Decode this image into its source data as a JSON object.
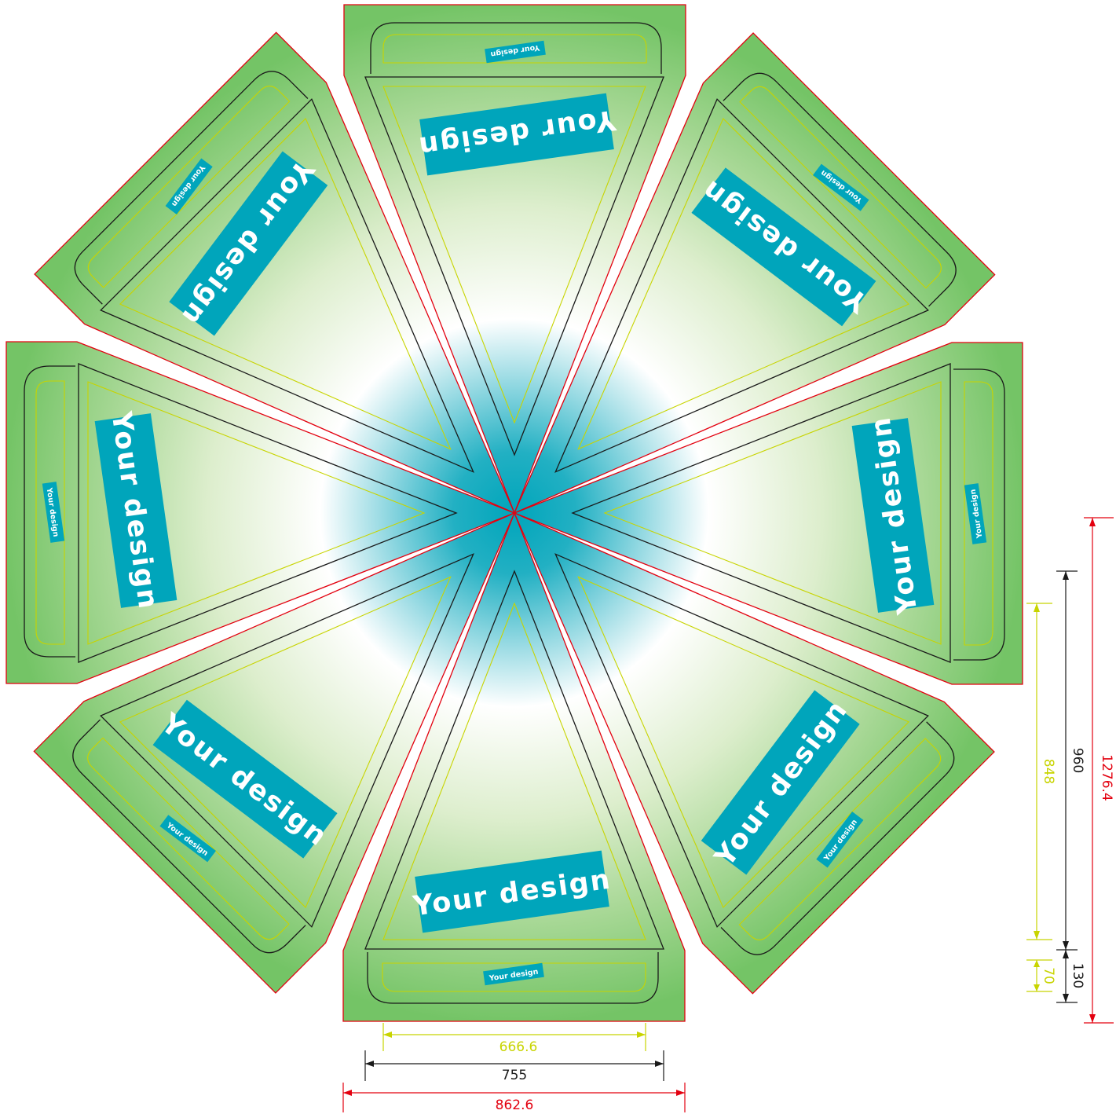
{
  "design_label": "Your design",
  "panel_count": 8,
  "colors": {
    "center": "#00a5bb",
    "mid": "#ffffff",
    "edge": "#78c46b",
    "label_bg": "#00a5bb",
    "label_text": "#ffffff",
    "cut_line": "#e3000f",
    "fold_line": "#1a1a1a",
    "safe_line": "#c8d400"
  },
  "dimensions": {
    "horizontal": [
      {
        "name": "safe-width",
        "value": "666.6",
        "color": "#c8d400"
      },
      {
        "name": "fold-width",
        "value": "755",
        "color": "#1a1a1a"
      },
      {
        "name": "cut-width",
        "value": "862.6",
        "color": "#e3000f"
      }
    ],
    "vertical": [
      {
        "name": "safe-height",
        "value": "848",
        "color": "#c8d400"
      },
      {
        "name": "fold-height",
        "value": "960",
        "color": "#1a1a1a"
      },
      {
        "name": "cut-height",
        "value": "1276.4",
        "color": "#e3000f"
      },
      {
        "name": "flap-safe",
        "value": "70",
        "color": "#c8d400"
      },
      {
        "name": "flap-height",
        "value": "130",
        "color": "#1a1a1a"
      }
    ]
  }
}
